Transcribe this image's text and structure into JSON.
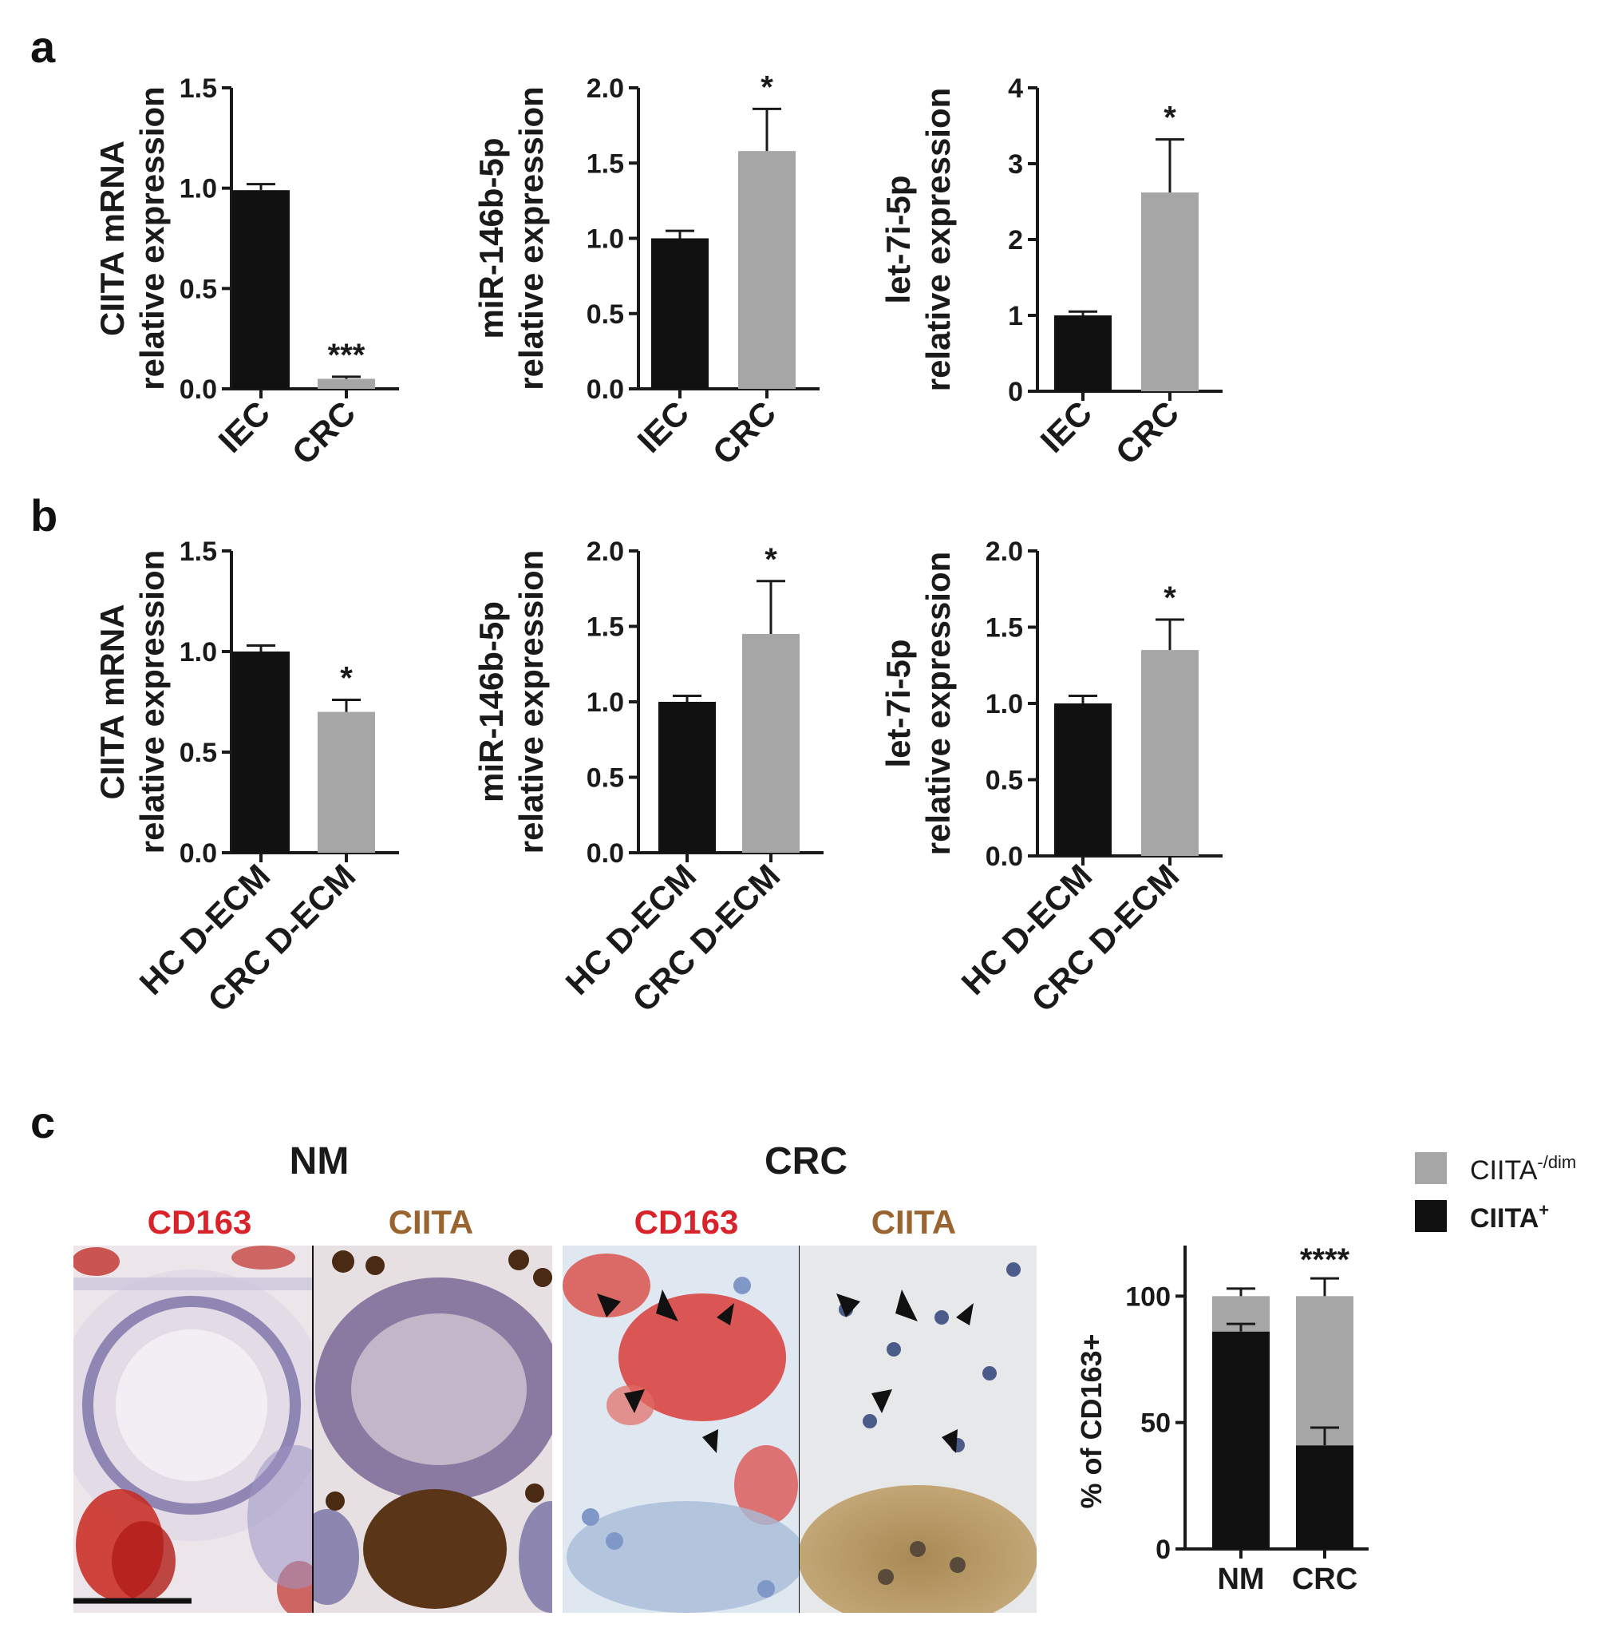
{
  "panel_labels": [
    "a",
    "b",
    "c"
  ],
  "colors": {
    "black_bar": "#111111",
    "gray_bar": "#a6a6a6",
    "cd163_red": "#d8232a",
    "ciita_brown": "#9a6430",
    "axis": "#1a1a1a"
  },
  "chart_data": [
    {
      "id": "a1",
      "type": "bar",
      "panel": "a",
      "ylabel": [
        "CIITA mRNA",
        "relative expression"
      ],
      "categories": [
        "IEC",
        "CRC"
      ],
      "values": [
        0.99,
        0.05
      ],
      "errors": [
        0.03,
        0.01
      ],
      "yticks": [
        "0.0",
        "0.5",
        "1.0",
        "1.5"
      ],
      "ylim": [
        0,
        1.5
      ],
      "significance": [
        "",
        "***"
      ]
    },
    {
      "id": "a2",
      "type": "bar",
      "panel": "a",
      "ylabel": [
        "miR-146b-5p",
        "relative expression"
      ],
      "categories": [
        "IEC",
        "CRC"
      ],
      "values": [
        1.0,
        1.58
      ],
      "errors": [
        0.05,
        0.28
      ],
      "yticks": [
        "0.0",
        "0.5",
        "1.0",
        "1.5",
        "2.0"
      ],
      "ylim": [
        0,
        2.0
      ],
      "significance": [
        "",
        "*"
      ]
    },
    {
      "id": "a3",
      "type": "bar",
      "panel": "a",
      "ylabel": [
        "let-7i-5p",
        "relative expression"
      ],
      "categories": [
        "IEC",
        "CRC"
      ],
      "values": [
        1.0,
        2.62
      ],
      "errors": [
        0.05,
        0.7
      ],
      "yticks": [
        "0",
        "1",
        "2",
        "3",
        "4"
      ],
      "ylim": [
        0,
        4
      ],
      "significance": [
        "",
        "*"
      ]
    },
    {
      "id": "b1",
      "type": "bar",
      "panel": "b",
      "ylabel": [
        "CIITA mRNA",
        "relative expression"
      ],
      "categories": [
        "HC D-ECM",
        "CRC D-ECM"
      ],
      "values": [
        1.0,
        0.7
      ],
      "errors": [
        0.03,
        0.06
      ],
      "yticks": [
        "0.0",
        "0.5",
        "1.0",
        "1.5"
      ],
      "ylim": [
        0,
        1.5
      ],
      "significance": [
        "",
        "*"
      ]
    },
    {
      "id": "b2",
      "type": "bar",
      "panel": "b",
      "ylabel": [
        "miR-146b-5p",
        "relative expression"
      ],
      "categories": [
        "HC D-ECM",
        "CRC D-ECM"
      ],
      "values": [
        1.0,
        1.45
      ],
      "errors": [
        0.04,
        0.35
      ],
      "yticks": [
        "0.0",
        "0.5",
        "1.0",
        "1.5",
        "2.0"
      ],
      "ylim": [
        0,
        2.0
      ],
      "significance": [
        "",
        "*"
      ]
    },
    {
      "id": "b3",
      "type": "bar",
      "panel": "b",
      "ylabel": [
        "let-7i-5p",
        "relative expression"
      ],
      "categories": [
        "HC D-ECM",
        "CRC D-ECM"
      ],
      "values": [
        1.0,
        1.35
      ],
      "errors": [
        0.05,
        0.2
      ],
      "yticks": [
        "0.0",
        "0.5",
        "1.0",
        "1.5",
        "2.0"
      ],
      "ylim": [
        0,
        2.0
      ],
      "significance": [
        "",
        "*"
      ]
    },
    {
      "id": "c1",
      "type": "bar",
      "stacked": true,
      "panel": "c",
      "ylabel": "% of CD163+",
      "categories": [
        "NM",
        "CRC"
      ],
      "series": [
        {
          "name": "CIITA+",
          "values": [
            86,
            41
          ],
          "errors": [
            3,
            7
          ]
        },
        {
          "name": "CIITA-/dim",
          "values": [
            14,
            59
          ],
          "errors": [
            3,
            7
          ]
        }
      ],
      "yticks": [
        "0",
        "50",
        "100"
      ],
      "ylim": [
        0,
        120
      ],
      "significance": [
        "",
        "****"
      ],
      "legend": [
        {
          "label": "CIITA",
          "sup": "-/dim"
        },
        {
          "label": "CIITA",
          "sup": "+"
        }
      ]
    }
  ],
  "micrographs": {
    "groups": [
      "NM",
      "CRC"
    ],
    "stain_labels": [
      "CD163",
      "CIITA",
      "CD163",
      "CIITA"
    ]
  }
}
